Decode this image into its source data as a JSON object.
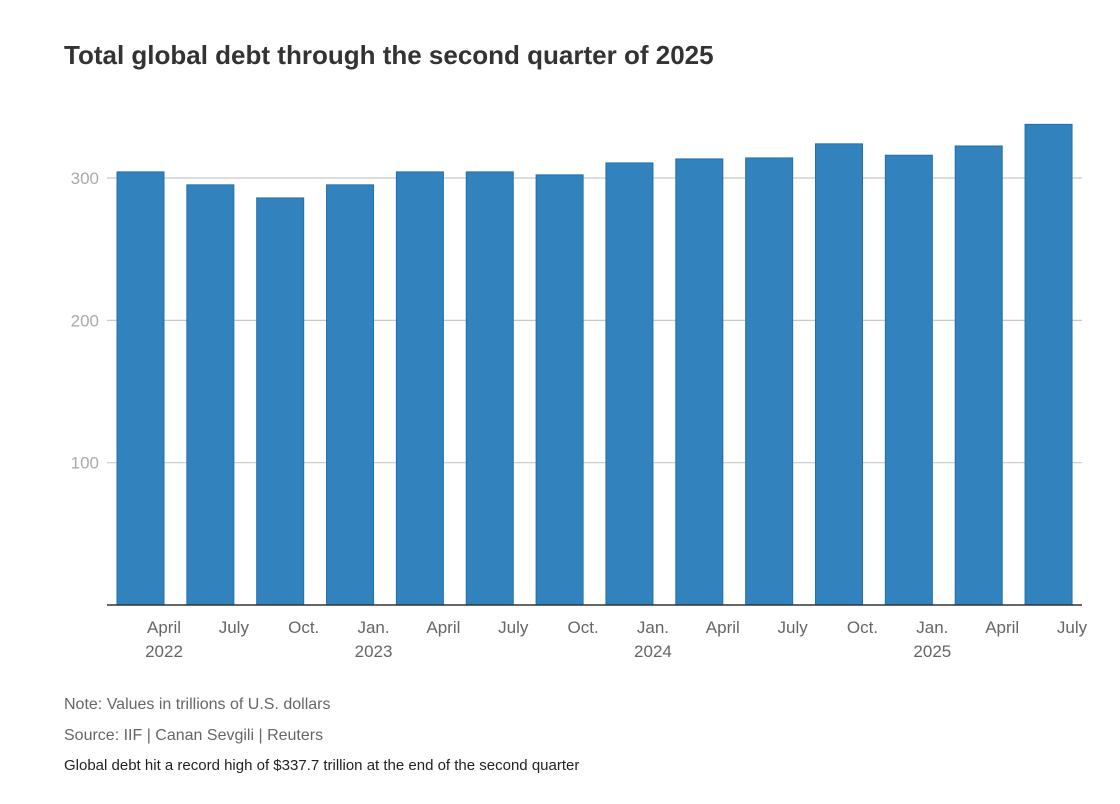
{
  "chart_data": {
    "type": "bar",
    "title": "Total global debt through the second quarter of 2025",
    "categories": [
      "April 2022",
      "July 2022",
      "Oct. 2022",
      "Jan. 2023",
      "April 2023",
      "July 2023",
      "Oct. 2023",
      "Jan. 2024",
      "April 2024",
      "July 2024",
      "Oct. 2024",
      "Jan. 2025",
      "April 2025",
      "July 2025"
    ],
    "tick_labels": [
      "April",
      "July",
      "Oct.",
      "Jan.",
      "April",
      "July",
      "Oct.",
      "Jan.",
      "April",
      "July",
      "Oct.",
      "Jan.",
      "April",
      "July"
    ],
    "year_labels": {
      "0": "2022",
      "3": "2023",
      "7": "2024",
      "11": "2025"
    },
    "values": [
      304.3,
      295.2,
      286.0,
      295.2,
      304.3,
      304.3,
      302.2,
      310.6,
      313.4,
      314.1,
      324.0,
      316.0,
      322.5,
      337.7
    ],
    "yticks": [
      100,
      200,
      300
    ],
    "ylim": [
      0,
      350
    ],
    "xlabel": "",
    "ylabel": "",
    "grid": true,
    "bar_color": "#3182bd",
    "bar_edge": "#1f6fae"
  },
  "note": "Note: Values in trillions of U.S. dollars",
  "source": "Source: IIF | Canan Sevgili | Reuters",
  "subtitle": "Global debt hit a record high of $337.7 trillion at the end of the second quarter"
}
